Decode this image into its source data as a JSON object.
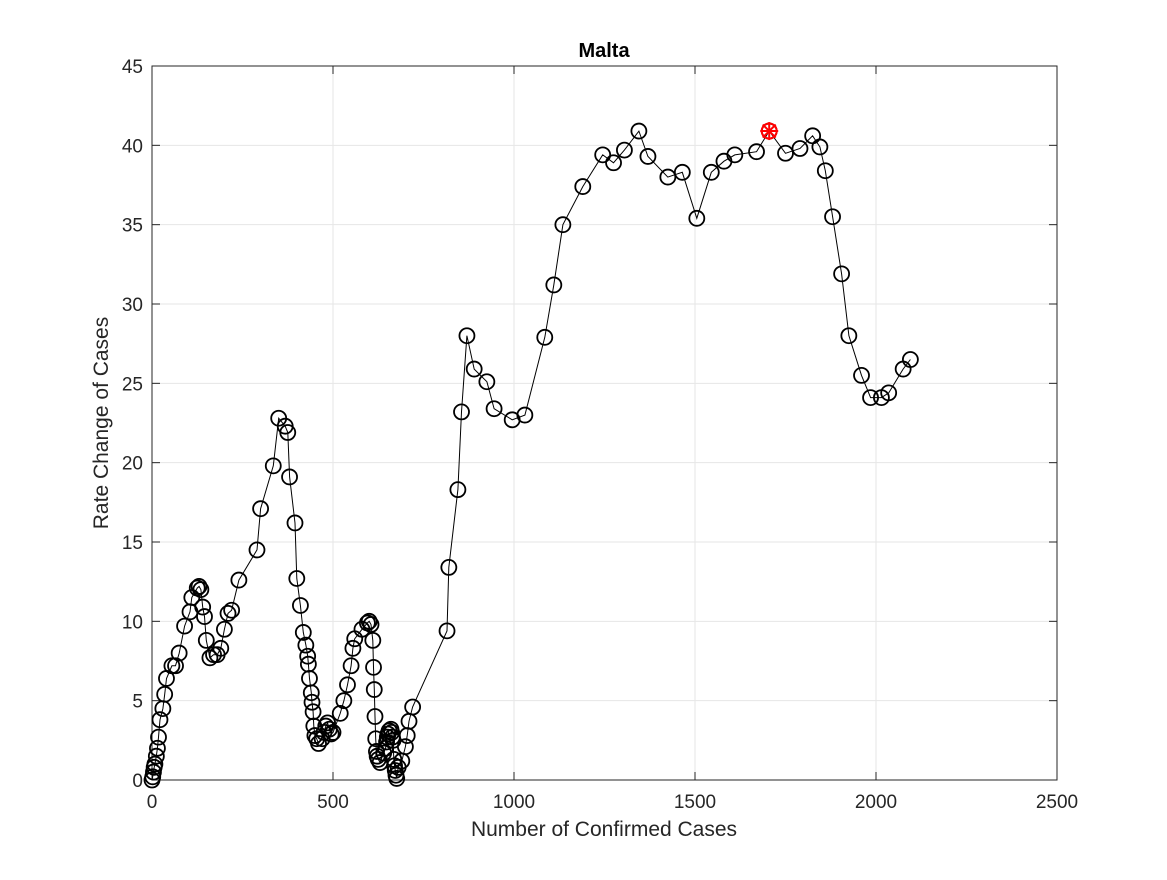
{
  "chart_data": {
    "type": "line",
    "title": "Malta",
    "xlabel": "Number of Confirmed Cases",
    "ylabel": "Rate Change of Cases",
    "xlim": [
      0,
      2500
    ],
    "ylim": [
      0,
      45
    ],
    "xticks": [
      0,
      500,
      1000,
      1500,
      2000,
      2500
    ],
    "yticks": [
      0,
      5,
      10,
      15,
      20,
      25,
      30,
      35,
      40,
      45
    ],
    "grid": true,
    "legend": "none",
    "marker": "circle",
    "series": [
      {
        "color": "#000000",
        "x": [
          0,
          2,
          4,
          6,
          8,
          12,
          15,
          18,
          22,
          30,
          35,
          40,
          55,
          65,
          75,
          90,
          105,
          110,
          125,
          130,
          135,
          140,
          145,
          150,
          160,
          170,
          180,
          190,
          200,
          210,
          220,
          240,
          290,
          300,
          335,
          350,
          368,
          375,
          380,
          395,
          400,
          410,
          418,
          425,
          430,
          432,
          435,
          440,
          442,
          445,
          447,
          450,
          455,
          460,
          470,
          475,
          480,
          485,
          490,
          495,
          500,
          520,
          530,
          540,
          550,
          555,
          560,
          580,
          595,
          600,
          605,
          610,
          612,
          614,
          616,
          618,
          620,
          622,
          625,
          630,
          640,
          645,
          648,
          650,
          652,
          655,
          660,
          662,
          664,
          666,
          668,
          670,
          672,
          674,
          676,
          680,
          690,
          700,
          705,
          710,
          720,
          815,
          820,
          845,
          855,
          870,
          890,
          925,
          945,
          995,
          1030,
          1085,
          1110,
          1135,
          1190,
          1245,
          1275,
          1305,
          1345,
          1370,
          1425,
          1465,
          1505,
          1545,
          1580,
          1610,
          1670,
          1705,
          1750,
          1790,
          1825,
          1845,
          1860,
          1880,
          1905,
          1925,
          1960,
          1985,
          2015,
          2035,
          2075,
          2095
        ],
        "y": [
          0,
          0.2,
          0.5,
          0.8,
          1.0,
          1.5,
          2.0,
          2.7,
          3.8,
          4.5,
          5.4,
          6.4,
          7.2,
          7.2,
          8.0,
          9.7,
          10.6,
          11.5,
          12.1,
          12.2,
          12.0,
          10.9,
          10.3,
          8.8,
          7.7,
          7.9,
          7.9,
          8.3,
          9.5,
          10.5,
          10.7,
          12.6,
          14.5,
          17.1,
          19.8,
          22.8,
          22.3,
          21.9,
          19.1,
          16.2,
          12.7,
          11.0,
          9.3,
          8.5,
          7.8,
          7.3,
          6.4,
          5.5,
          4.9,
          4.3,
          3.4,
          2.8,
          2.6,
          2.3,
          2.6,
          3.0,
          3.4,
          3.6,
          3.2,
          2.9,
          3.0,
          4.2,
          5.0,
          6.0,
          7.2,
          8.3,
          8.9,
          9.5,
          9.9,
          10.0,
          9.8,
          8.8,
          7.1,
          5.7,
          4.0,
          2.6,
          1.8,
          1.5,
          1.3,
          1.1,
          1.7,
          2.0,
          2.4,
          2.7,
          2.9,
          3.1,
          3.2,
          3.0,
          2.7,
          2.5,
          1.3,
          0.9,
          0.6,
          0.3,
          0.1,
          0.8,
          1.2,
          2.1,
          2.8,
          3.7,
          4.6,
          9.4,
          13.4,
          18.3,
          23.2,
          28.0,
          25.9,
          25.1,
          23.4,
          22.7,
          23.0,
          27.9,
          31.2,
          35.0,
          37.4,
          39.4,
          38.9,
          39.7,
          40.9,
          39.3,
          38.0,
          38.3,
          35.4,
          38.3,
          39.0,
          39.4,
          39.6,
          40.9,
          39.5,
          39.8,
          40.6,
          39.9,
          38.4,
          35.5,
          31.9,
          28.0,
          25.5,
          24.1,
          24.1,
          24.4,
          25.9,
          26.5
        ]
      }
    ],
    "highlight": {
      "x": 1705,
      "y": 40.9,
      "color": "#ff0000"
    }
  }
}
